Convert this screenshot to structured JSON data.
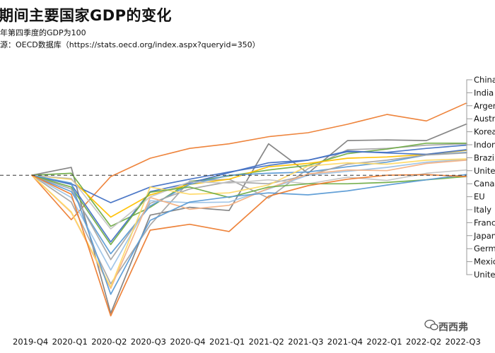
{
  "chart_data": {
    "type": "line",
    "title": "期间主要国家GDP的变化",
    "subtitle": "年第四季度的GDP为100",
    "source": "源：OECD数据库（https://stats.oecd.org/index.aspx?queryid=350）",
    "categories": [
      "2019-Q4",
      "2020-Q1",
      "2020-Q2",
      "2020-Q3",
      "2020-Q4",
      "2021-Q1",
      "2021-Q2",
      "2021-Q3",
      "2021-Q4",
      "2022-Q1",
      "2022-Q2",
      "2022-Q3"
    ],
    "x_tick_labels": [
      "2019-Q4",
      "2020-Q1",
      "2020-Q2",
      "2020-Q3",
      "2020-Q4",
      "2021-Q1",
      "2021-Q2",
      "2021-Q3",
      "2021-Q4",
      "2022-Q1",
      "2022-Q2",
      "2022-Q3"
    ],
    "ylim": [
      78,
      116
    ],
    "reference_line": 100,
    "legend": [
      "China",
      "India",
      "Argentina",
      "Australia",
      "Korea",
      "Indonesia",
      "Brazil",
      "United States",
      "Canada",
      "EU",
      "Italy",
      "France",
      "Japan",
      "Germany",
      "Mexico",
      "United Kingdom"
    ],
    "legend_display": [
      "China",
      "India",
      "Argen",
      "Austr",
      "Korea",
      "Indon",
      "Brazil",
      "Unite",
      "Canad",
      "EU",
      "Italy",
      "Franc",
      "Japan",
      "Germ",
      "Mexic",
      "Unite"
    ],
    "series": [
      {
        "name": "China",
        "color": "#ed7d31",
        "values": [
          100,
          93.2,
          99.8,
          102.6,
          104.1,
          104.8,
          105.9,
          106.5,
          107.8,
          109.3,
          108.3,
          111.0
        ]
      },
      {
        "name": "India",
        "color": "#7f7f7f",
        "values": [
          100,
          101.2,
          78.9,
          93.9,
          95.1,
          94.6,
          104.8,
          100.3,
          105.3,
          105.4,
          105.3,
          107.8
        ]
      },
      {
        "name": "Argentina",
        "color": "#a5a5a5",
        "values": [
          100,
          95.9,
          83.4,
          92.4,
          99.1,
          99.4,
          96.5,
          101.0,
          103.9,
          104.1,
          104.6,
          104.8
        ]
      },
      {
        "name": "Australia",
        "color": "#70ad47",
        "values": [
          100,
          100.3,
          92.2,
          95.1,
          99.0,
          99.9,
          100.8,
          101.5,
          103.3,
          104.0,
          104.9,
          104.9
        ]
      },
      {
        "name": "Korea",
        "color": "#4472c4",
        "values": [
          100,
          98.7,
          95.8,
          98.2,
          99.4,
          100.5,
          101.5,
          102.3,
          103.6,
          103.5,
          104.1,
          104.6
        ]
      },
      {
        "name": "Indonesia",
        "color": "#ffc000",
        "values": [
          100,
          99.4,
          93.6,
          97.0,
          98.6,
          99.4,
          101.3,
          101.8,
          102.6,
          102.8,
          103.2,
          103.8
        ]
      },
      {
        "name": "Brazil",
        "color": "#5b9bd5",
        "values": [
          100,
          97.5,
          88.0,
          95.3,
          98.6,
          100.0,
          100.3,
          100.5,
          101.3,
          102.0,
          103.1,
          103.5
        ]
      },
      {
        "name": "United States",
        "color": "#4472c4",
        "values": [
          100,
          98.6,
          89.8,
          97.5,
          98.8,
          100.4,
          101.9,
          102.3,
          103.7,
          103.4,
          103.2,
          103.9
        ]
      },
      {
        "name": "Canada",
        "color": "#a5a5a5",
        "values": [
          100,
          97.9,
          87.1,
          95.7,
          97.9,
          99.0,
          98.7,
          100.0,
          101.7,
          102.3,
          103.1,
          103.4
        ]
      },
      {
        "name": "EU",
        "color": "#9dc3e6",
        "values": [
          100,
          96.6,
          85.5,
          96.1,
          95.8,
          95.9,
          97.9,
          100.0,
          100.6,
          101.2,
          102.0,
          102.4
        ]
      },
      {
        "name": "Italy",
        "color": "#f4b183",
        "values": [
          100,
          94.3,
          82.7,
          96.6,
          94.8,
          95.4,
          98.0,
          100.2,
          100.8,
          100.7,
          101.8,
          102.3
        ]
      },
      {
        "name": "France",
        "color": "#ffd966",
        "values": [
          100,
          94.4,
          82.9,
          98.2,
          97.1,
          97.3,
          98.5,
          101.4,
          101.9,
          101.7,
          102.3,
          102.5
        ]
      },
      {
        "name": "Japan",
        "color": "#c5c5c5",
        "values": [
          100,
          99.5,
          91.8,
          96.7,
          99.0,
          98.8,
          99.3,
          98.7,
          99.7,
          99.2,
          100.3,
          100.8
        ]
      },
      {
        "name": "Germany",
        "color": "#70ad47",
        "values": [
          100,
          98.2,
          89.4,
          97.4,
          98.2,
          96.6,
          98.2,
          98.7,
          98.7,
          98.9,
          99.3,
          99.8
        ]
      },
      {
        "name": "Mexico",
        "color": "#5b9bd5",
        "values": [
          100,
          98.8,
          81.8,
          93.1,
          95.9,
          96.7,
          97.3,
          97.0,
          97.6,
          98.5,
          99.3,
          100.1
        ]
      },
      {
        "name": "United Kingdom",
        "color": "#ed7d31",
        "values": [
          100,
          97.1,
          78.5,
          91.6,
          92.5,
          91.4,
          96.8,
          98.4,
          99.4,
          100.0,
          100.1,
          99.8
        ]
      }
    ]
  },
  "watermark": "西西弗"
}
